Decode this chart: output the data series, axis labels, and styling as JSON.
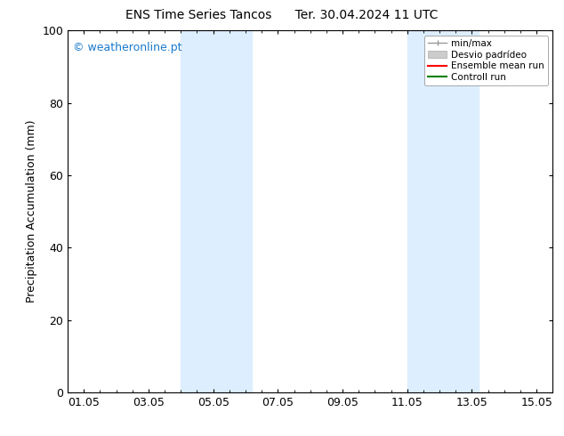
{
  "title1": "ENS Time Series Tancos",
  "title2": "Ter. 30.04.2024 11 UTC",
  "ylabel": "Precipitation Accumulation (mm)",
  "ylim": [
    0,
    100
  ],
  "yticks": [
    0,
    20,
    40,
    60,
    80,
    100
  ],
  "xlim": [
    0.5,
    15.5
  ],
  "xtick_labels": [
    "01.05",
    "03.05",
    "05.05",
    "07.05",
    "09.05",
    "11.05",
    "13.05",
    "15.05"
  ],
  "xtick_positions": [
    1,
    3,
    5,
    7,
    9,
    11,
    13,
    15
  ],
  "shaded_regions": [
    {
      "xmin": 4.0,
      "xmax": 5.5,
      "color": "#ddeeff"
    },
    {
      "xmin": 5.5,
      "xmax": 6.5,
      "color": "#ddeeff"
    },
    {
      "xmin": 11.0,
      "xmax": 12.0,
      "color": "#ddeeff"
    },
    {
      "xmin": 12.0,
      "xmax": 13.2,
      "color": "#ddeeff"
    }
  ],
  "watermark_text": "© weatheronline.pt",
  "watermark_color": "#1a7acc",
  "legend_labels": [
    "min/max",
    "Desvio padrídeo",
    "Ensemble mean run",
    "Controll run"
  ],
  "legend_colors": [
    "#999999",
    "#cccccc",
    "#ff0000",
    "#008000"
  ],
  "bg_color": "#ffffff",
  "axes_color": "#000000",
  "tick_color": "#000000",
  "font_family": "DejaVu Sans",
  "font_size": 9,
  "title_font_size": 10
}
